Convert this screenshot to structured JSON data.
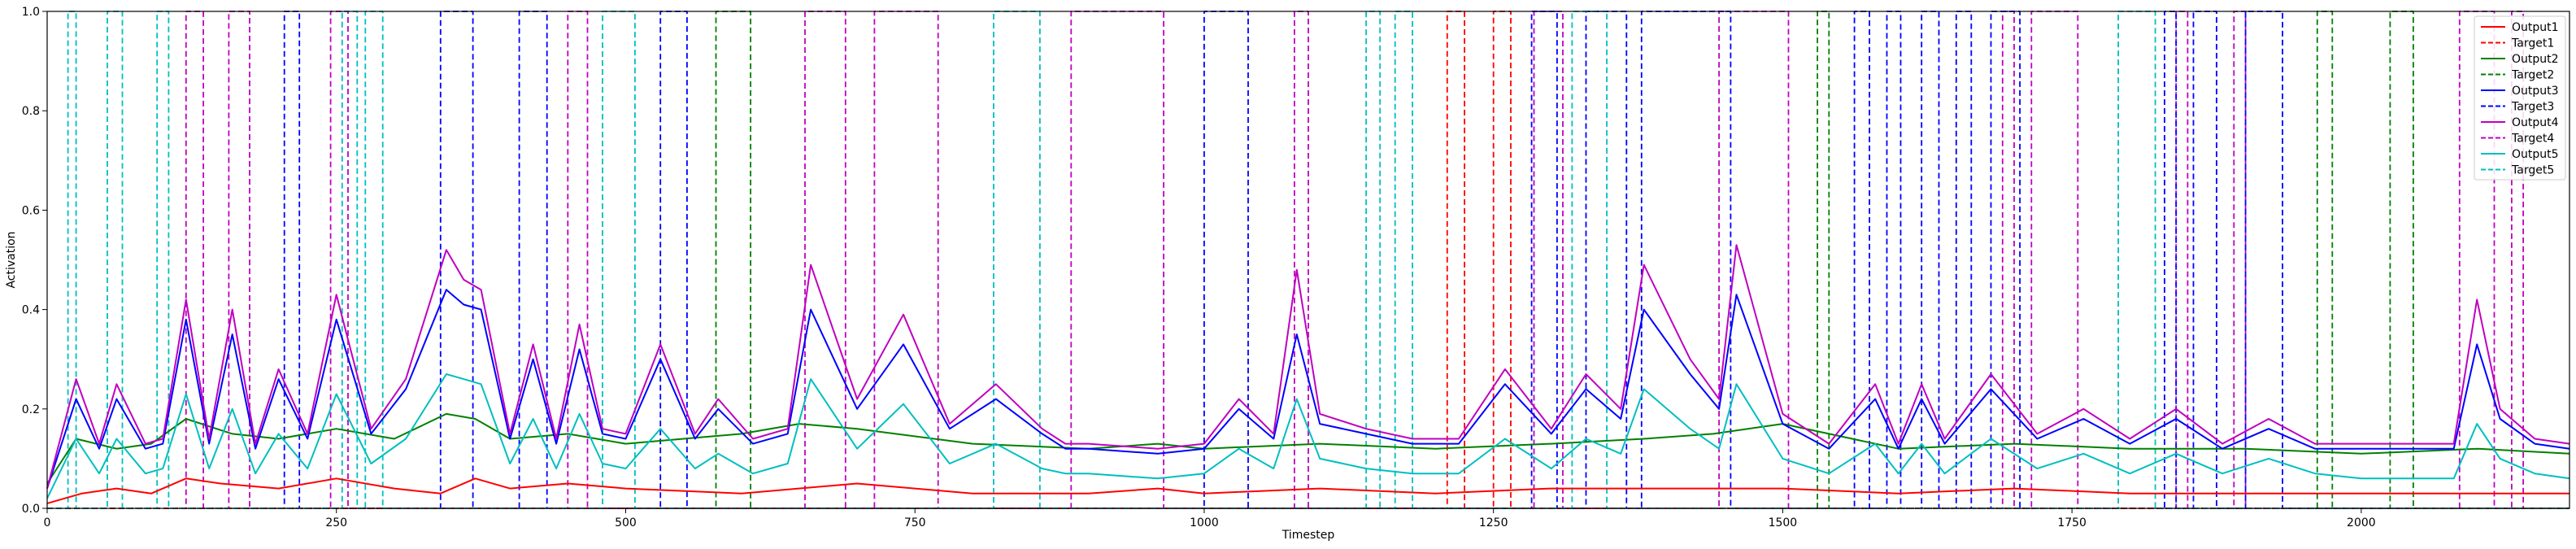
{
  "chart_data": {
    "type": "line",
    "xlabel": "Timestep",
    "ylabel": "Activation",
    "xlim": [
      0,
      2180
    ],
    "ylim": [
      0,
      1.0
    ],
    "xticks": [
      0,
      250,
      500,
      750,
      1000,
      1250,
      1500,
      1750,
      2000
    ],
    "yticks": [
      0.0,
      0.2,
      0.4,
      0.6,
      0.8,
      1.0
    ],
    "ytick_labels": [
      "0.0",
      "0.2",
      "0.4",
      "0.6",
      "0.8",
      "1.0"
    ],
    "legend_position": "upper-right",
    "series": [
      {
        "name": "Output1",
        "color": "#ff0000",
        "style": "solid",
        "x": [
          0,
          30,
          60,
          90,
          120,
          150,
          200,
          250,
          300,
          340,
          370,
          400,
          450,
          500,
          600,
          700,
          800,
          900,
          960,
          1000,
          1100,
          1200,
          1300,
          1380,
          1440,
          1500,
          1600,
          1700,
          1800,
          1900,
          2000,
          2100,
          2180
        ],
        "y": [
          0.01,
          0.03,
          0.04,
          0.03,
          0.06,
          0.05,
          0.04,
          0.06,
          0.04,
          0.03,
          0.06,
          0.04,
          0.05,
          0.04,
          0.03,
          0.05,
          0.03,
          0.03,
          0.04,
          0.03,
          0.04,
          0.03,
          0.04,
          0.04,
          0.04,
          0.04,
          0.03,
          0.04,
          0.03,
          0.03,
          0.03,
          0.03,
          0.03
        ]
      },
      {
        "name": "Target1",
        "color": "#ff0000",
        "style": "dashed",
        "pulses": [
          [
            1210,
            1225
          ],
          [
            1250,
            1265
          ]
        ]
      },
      {
        "name": "Output2",
        "color": "#008000",
        "style": "solid",
        "x": [
          0,
          25,
          60,
          90,
          120,
          160,
          200,
          250,
          300,
          345,
          370,
          400,
          450,
          500,
          550,
          600,
          650,
          700,
          800,
          900,
          960,
          1000,
          1100,
          1200,
          1300,
          1380,
          1440,
          1500,
          1600,
          1700,
          1800,
          1900,
          2000,
          2100,
          2180
        ],
        "y": [
          0.05,
          0.14,
          0.12,
          0.13,
          0.18,
          0.15,
          0.14,
          0.16,
          0.14,
          0.19,
          0.18,
          0.14,
          0.15,
          0.13,
          0.14,
          0.15,
          0.17,
          0.16,
          0.13,
          0.12,
          0.13,
          0.12,
          0.13,
          0.12,
          0.13,
          0.14,
          0.15,
          0.17,
          0.12,
          0.13,
          0.12,
          0.12,
          0.11,
          0.12,
          0.11
        ]
      },
      {
        "name": "Target2",
        "color": "#008000",
        "style": "dashed",
        "pulses": [
          [
            578,
            608
          ],
          [
            1530,
            1540
          ],
          [
            1962,
            1975
          ],
          [
            2025,
            2045
          ]
        ]
      },
      {
        "name": "Output3",
        "color": "#0000ff",
        "style": "solid",
        "x": [
          0,
          25,
          45,
          60,
          85,
          100,
          120,
          140,
          160,
          180,
          200,
          225,
          250,
          280,
          310,
          345,
          360,
          375,
          400,
          420,
          440,
          460,
          480,
          500,
          530,
          560,
          580,
          610,
          640,
          660,
          700,
          740,
          780,
          820,
          860,
          880,
          900,
          960,
          1000,
          1030,
          1060,
          1080,
          1100,
          1140,
          1180,
          1220,
          1260,
          1300,
          1330,
          1360,
          1380,
          1420,
          1445,
          1460,
          1500,
          1540,
          1580,
          1600,
          1620,
          1640,
          1680,
          1720,
          1760,
          1800,
          1840,
          1880,
          1920,
          1960,
          2000,
          2050,
          2080,
          2100,
          2120,
          2150,
          2180
        ],
        "y": [
          0.04,
          0.22,
          0.12,
          0.22,
          0.12,
          0.13,
          0.38,
          0.13,
          0.35,
          0.12,
          0.26,
          0.14,
          0.38,
          0.15,
          0.24,
          0.44,
          0.41,
          0.4,
          0.14,
          0.3,
          0.13,
          0.32,
          0.15,
          0.14,
          0.3,
          0.14,
          0.2,
          0.13,
          0.15,
          0.4,
          0.2,
          0.33,
          0.16,
          0.22,
          0.15,
          0.12,
          0.12,
          0.11,
          0.12,
          0.2,
          0.14,
          0.35,
          0.17,
          0.15,
          0.13,
          0.13,
          0.25,
          0.15,
          0.24,
          0.18,
          0.4,
          0.27,
          0.2,
          0.43,
          0.17,
          0.12,
          0.22,
          0.12,
          0.22,
          0.13,
          0.24,
          0.14,
          0.18,
          0.13,
          0.18,
          0.12,
          0.16,
          0.12,
          0.12,
          0.12,
          0.12,
          0.33,
          0.18,
          0.13,
          0.12
        ]
      },
      {
        "name": "Target3",
        "color": "#0000ff",
        "style": "dashed",
        "pulses": [
          [
            205,
            218
          ],
          [
            340,
            368
          ],
          [
            408,
            432
          ],
          [
            530,
            553
          ],
          [
            1000,
            1038
          ],
          [
            1283,
            1305
          ],
          [
            1330,
            1365
          ],
          [
            1378,
            1455
          ],
          [
            1562,
            1575
          ],
          [
            1590,
            1602
          ],
          [
            1620,
            1635
          ],
          [
            1650,
            1663
          ],
          [
            1680,
            1705
          ],
          [
            1830,
            1840
          ],
          [
            1855,
            1875
          ],
          [
            1900,
            1932
          ]
        ]
      },
      {
        "name": "Output4",
        "color": "#c000c0",
        "style": "solid",
        "x": [
          0,
          25,
          45,
          60,
          85,
          100,
          120,
          140,
          160,
          180,
          200,
          225,
          250,
          280,
          310,
          345,
          360,
          375,
          400,
          420,
          440,
          460,
          480,
          500,
          530,
          560,
          580,
          610,
          640,
          660,
          700,
          740,
          780,
          820,
          860,
          880,
          900,
          960,
          1000,
          1030,
          1060,
          1080,
          1100,
          1140,
          1180,
          1220,
          1260,
          1300,
          1330,
          1360,
          1380,
          1420,
          1445,
          1460,
          1500,
          1540,
          1580,
          1600,
          1620,
          1640,
          1680,
          1720,
          1760,
          1800,
          1840,
          1880,
          1920,
          1960,
          2000,
          2050,
          2080,
          2100,
          2120,
          2150,
          2180
        ],
        "y": [
          0.04,
          0.26,
          0.13,
          0.25,
          0.13,
          0.14,
          0.42,
          0.14,
          0.4,
          0.13,
          0.28,
          0.15,
          0.43,
          0.16,
          0.26,
          0.52,
          0.46,
          0.44,
          0.15,
          0.33,
          0.14,
          0.37,
          0.16,
          0.15,
          0.33,
          0.15,
          0.22,
          0.14,
          0.16,
          0.49,
          0.22,
          0.39,
          0.17,
          0.25,
          0.16,
          0.13,
          0.13,
          0.12,
          0.13,
          0.22,
          0.15,
          0.48,
          0.19,
          0.16,
          0.14,
          0.14,
          0.28,
          0.16,
          0.27,
          0.2,
          0.49,
          0.3,
          0.22,
          0.53,
          0.19,
          0.13,
          0.25,
          0.13,
          0.25,
          0.14,
          0.27,
          0.15,
          0.2,
          0.14,
          0.2,
          0.13,
          0.18,
          0.13,
          0.13,
          0.13,
          0.13,
          0.42,
          0.2,
          0.14,
          0.13
        ]
      },
      {
        "name": "Target4",
        "color": "#c000c0",
        "style": "dashed",
        "pulses": [
          [
            120,
            135
          ],
          [
            157,
            175
          ],
          [
            245,
            260
          ],
          [
            450,
            467
          ],
          [
            655,
            690
          ],
          [
            715,
            770
          ],
          [
            885,
            965
          ],
          [
            1078,
            1090
          ],
          [
            1285,
            1310
          ],
          [
            1445,
            1505
          ],
          [
            1690,
            1700
          ],
          [
            1715,
            1755
          ],
          [
            1840,
            1850
          ],
          [
            1890,
            1900
          ],
          [
            2085,
            2115
          ],
          [
            2130,
            2140
          ]
        ]
      },
      {
        "name": "Output5",
        "color": "#00bfbf",
        "style": "solid",
        "x": [
          0,
          25,
          45,
          60,
          85,
          100,
          120,
          140,
          160,
          180,
          200,
          225,
          250,
          280,
          310,
          345,
          360,
          375,
          400,
          420,
          440,
          460,
          480,
          500,
          530,
          560,
          580,
          610,
          640,
          660,
          700,
          740,
          780,
          820,
          860,
          880,
          900,
          960,
          1000,
          1030,
          1060,
          1080,
          1100,
          1140,
          1180,
          1220,
          1260,
          1300,
          1330,
          1360,
          1380,
          1420,
          1445,
          1460,
          1500,
          1540,
          1580,
          1600,
          1620,
          1640,
          1680,
          1720,
          1760,
          1800,
          1840,
          1880,
          1920,
          1960,
          2000,
          2050,
          2080,
          2100,
          2120,
          2150,
          2180
        ],
        "y": [
          0.02,
          0.14,
          0.07,
          0.14,
          0.07,
          0.08,
          0.23,
          0.08,
          0.2,
          0.07,
          0.15,
          0.08,
          0.23,
          0.09,
          0.14,
          0.27,
          0.26,
          0.25,
          0.09,
          0.18,
          0.08,
          0.19,
          0.09,
          0.08,
          0.16,
          0.08,
          0.11,
          0.07,
          0.09,
          0.26,
          0.12,
          0.21,
          0.09,
          0.13,
          0.08,
          0.07,
          0.07,
          0.06,
          0.07,
          0.12,
          0.08,
          0.22,
          0.1,
          0.08,
          0.07,
          0.07,
          0.14,
          0.08,
          0.14,
          0.11,
          0.24,
          0.16,
          0.12,
          0.25,
          0.1,
          0.07,
          0.13,
          0.07,
          0.13,
          0.07,
          0.14,
          0.08,
          0.11,
          0.07,
          0.11,
          0.07,
          0.1,
          0.07,
          0.06,
          0.06,
          0.06,
          0.17,
          0.1,
          0.07,
          0.06
        ]
      },
      {
        "name": "Target5",
        "color": "#00bfbf",
        "style": "dashed",
        "pulses": [
          [
            18,
            25
          ],
          [
            52,
            65
          ],
          [
            95,
            105
          ],
          [
            255,
            268
          ],
          [
            275,
            290
          ],
          [
            480,
            508
          ],
          [
            818,
            858
          ],
          [
            1140,
            1152
          ],
          [
            1165,
            1180
          ],
          [
            1318,
            1348
          ],
          [
            1790,
            1822
          ]
        ]
      }
    ]
  }
}
